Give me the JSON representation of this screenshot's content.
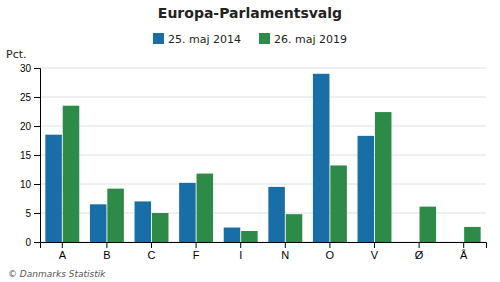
{
  "chart_data": {
    "type": "bar",
    "title": "Europa-Parlamentsvalg",
    "categories": [
      "A",
      "B",
      "C",
      "F",
      "I",
      "N",
      "O",
      "V",
      "Ø",
      "Å"
    ],
    "series": [
      {
        "name": "25. maj 2014",
        "color": "#1a6ea8",
        "values": [
          18.5,
          6.5,
          7.0,
          10.2,
          2.5,
          9.5,
          29.0,
          18.3,
          0.0,
          0.0
        ]
      },
      {
        "name": "26. maj 2019",
        "color": "#2d8b47",
        "values": [
          23.5,
          9.2,
          5.0,
          11.8,
          1.9,
          4.8,
          13.2,
          22.4,
          6.1,
          2.6
        ]
      }
    ],
    "y_label": "Pct.",
    "ylim": [
      0,
      30
    ],
    "yticks": [
      0,
      5,
      10,
      15,
      20,
      25,
      30
    ],
    "grid": true,
    "legend": "top",
    "annotations": [
      "© Danmarks Statistik"
    ]
  }
}
